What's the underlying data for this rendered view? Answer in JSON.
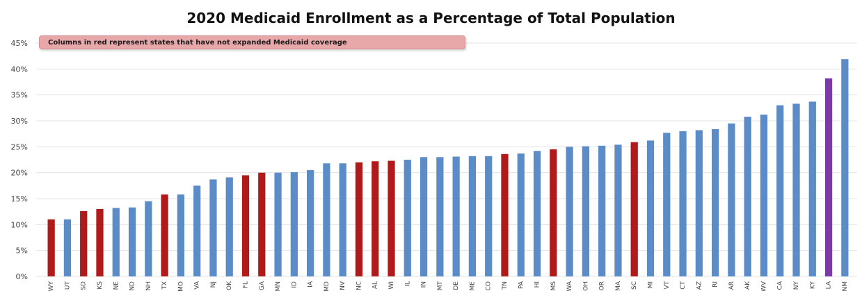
{
  "chart_data": {
    "type": "bar",
    "title": "2020 Medicaid Enrollment as a Percentage of Total Population",
    "annotation": "Columns in red represent states that have not expanded Medicaid coverage",
    "xlabel": "",
    "ylabel": "",
    "ylim": [
      0,
      45
    ],
    "y_ticks": [
      "0%",
      "5%",
      "10%",
      "15%",
      "20%",
      "25%",
      "30%",
      "35%",
      "40%",
      "45%"
    ],
    "grid": true,
    "categories": [
      "WY",
      "UT",
      "SD",
      "KS",
      "NE",
      "ND",
      "NH",
      "TX",
      "MO",
      "VA",
      "NJ",
      "OK",
      "FL",
      "GA",
      "MN",
      "ID",
      "IA",
      "MD",
      "NV",
      "NC",
      "AL",
      "WI",
      "IL",
      "IN",
      "MT",
      "DE",
      "ME",
      "CO",
      "TN",
      "PA",
      "HI",
      "MS",
      "WA",
      "OH",
      "OR",
      "MA",
      "SC",
      "MI",
      "VT",
      "CT",
      "AZ",
      "RI",
      "AR",
      "AK",
      "WV",
      "CA",
      "NY",
      "KY",
      "LA",
      "NM"
    ],
    "values": [
      11.0,
      11.0,
      12.6,
      13.0,
      13.2,
      13.3,
      14.5,
      15.8,
      15.8,
      17.5,
      18.7,
      19.1,
      19.5,
      20.0,
      20.0,
      20.1,
      20.5,
      21.8,
      21.8,
      22.0,
      22.2,
      22.3,
      22.5,
      23.0,
      23.0,
      23.1,
      23.2,
      23.2,
      23.6,
      23.7,
      24.2,
      24.5,
      25.0,
      25.1,
      25.2,
      25.4,
      25.9,
      26.2,
      27.7,
      28.0,
      28.2,
      28.4,
      29.5,
      30.8,
      31.2,
      33.0,
      33.3,
      33.7,
      38.2,
      41.9
    ],
    "bar_status": [
      "not-expanded",
      "expanded",
      "not-expanded",
      "not-expanded",
      "expanded",
      "expanded",
      "expanded",
      "not-expanded",
      "expanded",
      "expanded",
      "expanded",
      "expanded",
      "not-expanded",
      "not-expanded",
      "expanded",
      "expanded",
      "expanded",
      "expanded",
      "expanded",
      "not-expanded",
      "not-expanded",
      "not-expanded",
      "expanded",
      "expanded",
      "expanded",
      "expanded",
      "expanded",
      "expanded",
      "not-expanded",
      "expanded",
      "expanded",
      "not-expanded",
      "expanded",
      "expanded",
      "expanded",
      "expanded",
      "not-expanded",
      "expanded",
      "expanded",
      "expanded",
      "expanded",
      "expanded",
      "expanded",
      "expanded",
      "expanded",
      "expanded",
      "expanded",
      "expanded",
      "highlight",
      "expanded"
    ],
    "colors": {
      "expanded": "#5b8cc8",
      "not-expanded": "#b01a1a",
      "highlight": "#7b3aa8",
      "grid": "#e3e3e3",
      "axis_text": "#444444"
    }
  }
}
